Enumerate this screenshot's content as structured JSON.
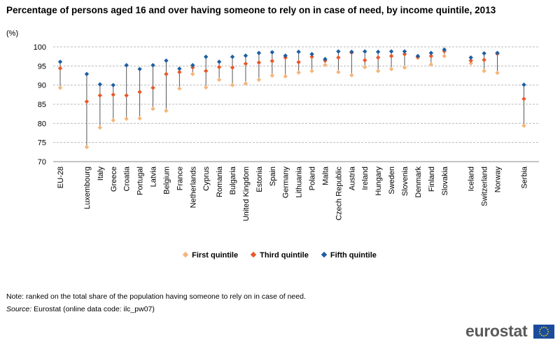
{
  "header": {
    "title": "Percentage of persons aged 16 and over having someone to rely on in case of need, by income quintile, 2013",
    "unit": "(%)"
  },
  "legend": {
    "first": "First quintile",
    "third": "Third quintile",
    "fifth": "Fifth quintile"
  },
  "colors": {
    "first": "#f5b57a",
    "third": "#e8582a",
    "fifth": "#1f5fa0",
    "range_line": "#555555",
    "grid": "#bbbbbb"
  },
  "footer": {
    "note": "Note: ranked on the total share of the population having someone to rely on in case of need.",
    "source_label": "Source:",
    "source_text": " Eurostat (online data code: ilc_pw07)",
    "logo_text": "eurostat",
    "logo_icon": "eu-flag-icon"
  },
  "chart_data": {
    "type": "scatter",
    "title": "Percentage of persons aged 16 and over having someone to rely on in case of need, by income quintile, 2013",
    "ylabel": "(%)",
    "ylim": [
      70,
      100
    ],
    "yticks": [
      70,
      75,
      80,
      85,
      90,
      95,
      100
    ],
    "grid": true,
    "legend_position": "bottom",
    "category_groups": [
      [
        "EU-28"
      ],
      [
        "Luxembourg",
        "Italy",
        "Greece",
        "Croatia",
        "Portugal",
        "Latvia",
        "Belgium",
        "France",
        "Netherlands",
        "Cyprus",
        "Romania",
        "Bulgaria",
        "United Kingdom",
        "Estonia",
        "Spain",
        "Germany",
        "Lithuania",
        "Poland",
        "Malta",
        "Czech Republic",
        "Austria",
        "Ireland",
        "Hungary",
        "Sweden",
        "Slovenia",
        "Denmark",
        "Finland",
        "Slovakia"
      ],
      [
        "Iceland",
        "Switzerland",
        "Norway"
      ],
      [
        "Serbia"
      ]
    ],
    "categories": [
      "EU-28",
      "Luxembourg",
      "Italy",
      "Greece",
      "Croatia",
      "Portugal",
      "Latvia",
      "Belgium",
      "France",
      "Netherlands",
      "Cyprus",
      "Romania",
      "Bulgaria",
      "United Kingdom",
      "Estonia",
      "Spain",
      "Germany",
      "Lithuania",
      "Poland",
      "Malta",
      "Czech Republic",
      "Austria",
      "Ireland",
      "Hungary",
      "Sweden",
      "Slovenia",
      "Denmark",
      "Finland",
      "Slovakia",
      "Iceland",
      "Switzerland",
      "Norway",
      "Serbia"
    ],
    "series": [
      {
        "name": "First quintile",
        "key": "first",
        "values": [
          89.3,
          73.8,
          78.9,
          80.8,
          81.2,
          81.3,
          83.8,
          83.3,
          89.1,
          92.9,
          89.4,
          91.4,
          90.0,
          90.4,
          91.4,
          92.5,
          92.3,
          93.3,
          93.7,
          95.3,
          93.4,
          92.6,
          94.7,
          93.7,
          94.2,
          94.6,
          97.1,
          95.4,
          97.6,
          95.7,
          93.7,
          93.2,
          79.4
        ]
      },
      {
        "name": "Third quintile",
        "key": "third",
        "values": [
          94.4,
          85.7,
          87.3,
          87.5,
          87.3,
          88.2,
          89.3,
          92.9,
          93.4,
          94.6,
          93.7,
          94.7,
          94.6,
          95.6,
          95.9,
          96.3,
          97.2,
          96.0,
          97.4,
          96.4,
          97.2,
          98.5,
          96.5,
          97.2,
          97.6,
          98.1,
          97.4,
          97.6,
          98.9,
          96.4,
          96.6,
          98.2,
          86.4
        ]
      },
      {
        "name": "Fifth quintile",
        "key": "fifth",
        "values": [
          96.1,
          92.9,
          90.2,
          90.0,
          95.2,
          94.2,
          95.2,
          96.4,
          94.3,
          95.2,
          97.4,
          96.1,
          97.4,
          97.7,
          98.4,
          98.6,
          97.7,
          98.7,
          98.1,
          96.8,
          98.8,
          98.7,
          98.8,
          98.7,
          98.8,
          98.8,
          97.6,
          98.4,
          99.3,
          97.2,
          98.3,
          98.4,
          90.1
        ]
      }
    ]
  }
}
